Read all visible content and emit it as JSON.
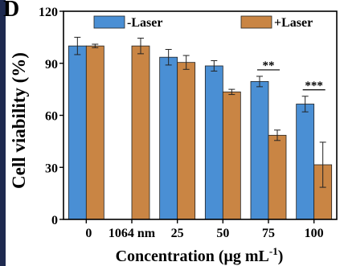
{
  "panel_label": "D",
  "chart_data": {
    "type": "bar",
    "xlabel": "Concentration (μg mL",
    "xlabel_sup": "-1",
    "xlabel_close": ")",
    "ylabel": "Cell viability (%)",
    "ylim": [
      0,
      120
    ],
    "yticks": [
      "0",
      "30",
      "60",
      "90",
      "120"
    ],
    "categories": [
      "0",
      "1064 nm",
      "25",
      "50",
      "75",
      "100"
    ],
    "series": [
      {
        "name": "-Laser",
        "color": "#4a8fd4",
        "values": [
          100,
          null,
          93.5,
          88.5,
          79.5,
          66.5
        ],
        "errors": [
          5,
          null,
          4.5,
          3,
          3,
          4.5
        ]
      },
      {
        "name": "+Laser",
        "color": "#c98544",
        "values": [
          100,
          100,
          90.5,
          73.5,
          48.5,
          31.5
        ],
        "errors": [
          1,
          4.5,
          4,
          1.5,
          3,
          13
        ]
      }
    ],
    "significance": [
      {
        "category": "75",
        "label": "**"
      },
      {
        "category": "100",
        "label": "***"
      }
    ],
    "legend_position": "top"
  }
}
